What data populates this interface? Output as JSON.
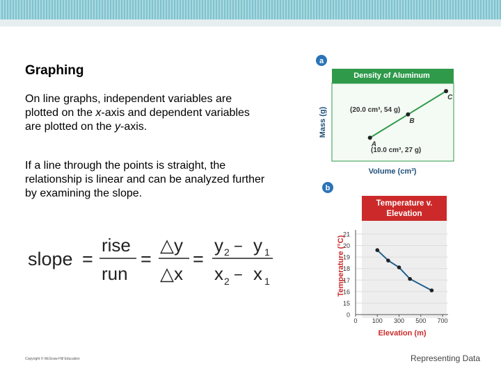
{
  "slide": {
    "title": "Graphing",
    "paragraphs": [
      [
        "On line graphs, independent variables are plotted on the ",
        "x",
        "-axis and dependent variables are plotted on the ",
        "y",
        "-axis."
      ],
      [
        "If a line through the points is straight, the relationship is linear and can be analyzed further by examining the slope."
      ]
    ],
    "formula": {
      "lhs": "slope",
      "eq": "=",
      "rise": "rise",
      "run": "run",
      "dy": "△y",
      "dx": "△x",
      "y2": "y",
      "x2": "x",
      "sub2": "2",
      "sub1": "1",
      "minus": "−"
    },
    "copyright": "Copyright © McGraw-Hill Education",
    "footer": "Representing Data"
  },
  "chart_data": [
    {
      "type": "line",
      "panel": "a",
      "title": "Density of Aluminum",
      "x_label": "Volume (cm³)",
      "y_label": "Mass (g)",
      "x": [
        10.0,
        20.0,
        30.0
      ],
      "values": [
        27,
        54,
        81
      ],
      "point_labels": [
        "A",
        "B",
        "C"
      ],
      "annotations": [
        "(10.0 cm³, 27 g)",
        "(20.0 cm³, 54 g)"
      ],
      "xlim": [
        0,
        32
      ],
      "ylim": [
        0,
        90
      ],
      "color": "#2e9a4a"
    },
    {
      "type": "line",
      "panel": "b",
      "title": "Temperature v. Elevation",
      "x_label": "Elevation (m)",
      "y_label": "Temperature (°C)",
      "x": [
        100,
        200,
        300,
        400,
        600
      ],
      "values": [
        19.6,
        18.7,
        18.1,
        17.1,
        16.1
      ],
      "xticks": [
        0,
        100,
        300,
        500,
        700
      ],
      "yticks": [
        0,
        15,
        16,
        17,
        18,
        19,
        20,
        21
      ],
      "xlim": [
        0,
        700
      ],
      "ylim": [
        0,
        21
      ],
      "color": "#1f5f8b"
    }
  ]
}
